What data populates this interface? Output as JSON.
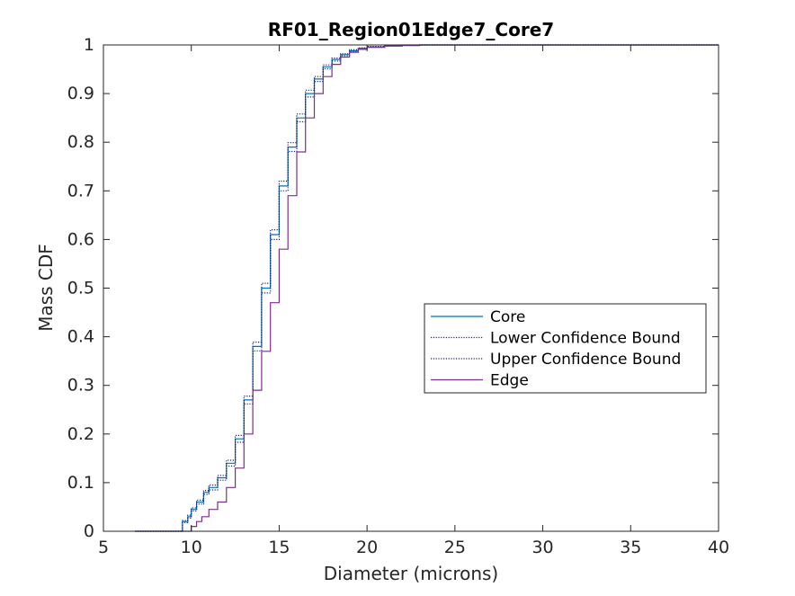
{
  "chart_data": {
    "type": "line",
    "title": "RF01_Region01Edge7_Core7",
    "xlabel": "Diameter (microns)",
    "ylabel": "Mass CDF",
    "xlim": [
      5,
      40
    ],
    "ylim": [
      0,
      1
    ],
    "xticks": [
      5,
      10,
      15,
      20,
      25,
      30,
      35,
      40
    ],
    "xtick_labels": [
      "5",
      "10",
      "15",
      "20",
      "25",
      "30",
      "35",
      "40"
    ],
    "yticks": [
      0,
      0.1,
      0.2,
      0.3,
      0.4,
      0.5,
      0.6,
      0.7,
      0.8,
      0.9,
      1
    ],
    "ytick_labels": [
      "0",
      "0.1",
      "0.2",
      "0.3",
      "0.4",
      "0.5",
      "0.6",
      "0.7",
      "0.8",
      "0.9",
      "1"
    ],
    "grid": false,
    "legend_position": "right",
    "series": [
      {
        "name": "Core",
        "color": "#0072bd",
        "style": "solid",
        "x": [
          6.8,
          9.3,
          9.5,
          9.8,
          10.0,
          10.3,
          10.7,
          11.0,
          11.5,
          12.0,
          12.5,
          13.0,
          13.5,
          14.0,
          14.5,
          15.0,
          15.5,
          16.0,
          16.5,
          17.0,
          17.5,
          18.0,
          18.5,
          19.0,
          19.5,
          20.0,
          21.0,
          22.0,
          23.0,
          40.0
        ],
        "y": [
          0.0,
          0.0,
          0.02,
          0.03,
          0.045,
          0.06,
          0.08,
          0.09,
          0.11,
          0.14,
          0.19,
          0.27,
          0.38,
          0.5,
          0.61,
          0.71,
          0.79,
          0.85,
          0.9,
          0.93,
          0.955,
          0.97,
          0.98,
          0.988,
          0.993,
          0.996,
          0.998,
          0.999,
          1.0,
          1.0
        ]
      },
      {
        "name": "Lower Confidence Bound",
        "color": "#0a2a8a",
        "style": "dotted",
        "x": [
          6.8,
          9.3,
          9.5,
          9.8,
          10.0,
          10.3,
          10.7,
          11.0,
          11.5,
          12.0,
          12.5,
          13.0,
          13.5,
          14.0,
          14.5,
          15.0,
          15.5,
          16.0,
          16.5,
          17.0,
          17.5,
          18.0,
          18.5,
          19.0,
          19.5,
          20.0,
          21.0,
          22.0,
          23.0,
          40.0
        ],
        "y": [
          0.0,
          0.0,
          0.018,
          0.027,
          0.042,
          0.056,
          0.076,
          0.085,
          0.105,
          0.134,
          0.183,
          0.262,
          0.371,
          0.49,
          0.6,
          0.7,
          0.781,
          0.842,
          0.893,
          0.925,
          0.951,
          0.967,
          0.978,
          0.986,
          0.992,
          0.995,
          0.998,
          0.999,
          1.0,
          1.0
        ]
      },
      {
        "name": "Upper Confidence Bound",
        "color": "#1f1f5f",
        "style": "dotted",
        "x": [
          6.8,
          9.3,
          9.5,
          9.8,
          10.0,
          10.3,
          10.7,
          11.0,
          11.5,
          12.0,
          12.5,
          13.0,
          13.5,
          14.0,
          14.5,
          15.0,
          15.5,
          16.0,
          16.5,
          17.0,
          17.5,
          18.0,
          18.5,
          19.0,
          19.5,
          20.0,
          21.0,
          22.0,
          23.0,
          40.0
        ],
        "y": [
          0.0,
          0.0,
          0.022,
          0.033,
          0.048,
          0.064,
          0.084,
          0.095,
          0.115,
          0.146,
          0.197,
          0.278,
          0.389,
          0.51,
          0.62,
          0.72,
          0.799,
          0.858,
          0.907,
          0.935,
          0.959,
          0.973,
          0.982,
          0.99,
          0.994,
          0.997,
          0.999,
          1.0,
          1.0,
          1.0
        ]
      },
      {
        "name": "Edge",
        "color": "#7e2f8e",
        "style": "solid",
        "x": [
          6.8,
          9.8,
          10.0,
          10.3,
          10.6,
          11.0,
          11.5,
          12.0,
          12.5,
          13.0,
          13.5,
          14.0,
          14.5,
          15.0,
          15.5,
          16.0,
          16.5,
          17.0,
          17.5,
          18.0,
          18.5,
          19.0,
          19.5,
          20.0,
          21.0,
          22.0,
          23.0,
          40.0
        ],
        "y": [
          0.0,
          0.0,
          0.01,
          0.02,
          0.03,
          0.045,
          0.06,
          0.09,
          0.13,
          0.2,
          0.29,
          0.37,
          0.47,
          0.58,
          0.69,
          0.78,
          0.85,
          0.9,
          0.935,
          0.96,
          0.975,
          0.985,
          0.991,
          0.995,
          0.998,
          0.999,
          1.0,
          1.0
        ]
      }
    ]
  }
}
